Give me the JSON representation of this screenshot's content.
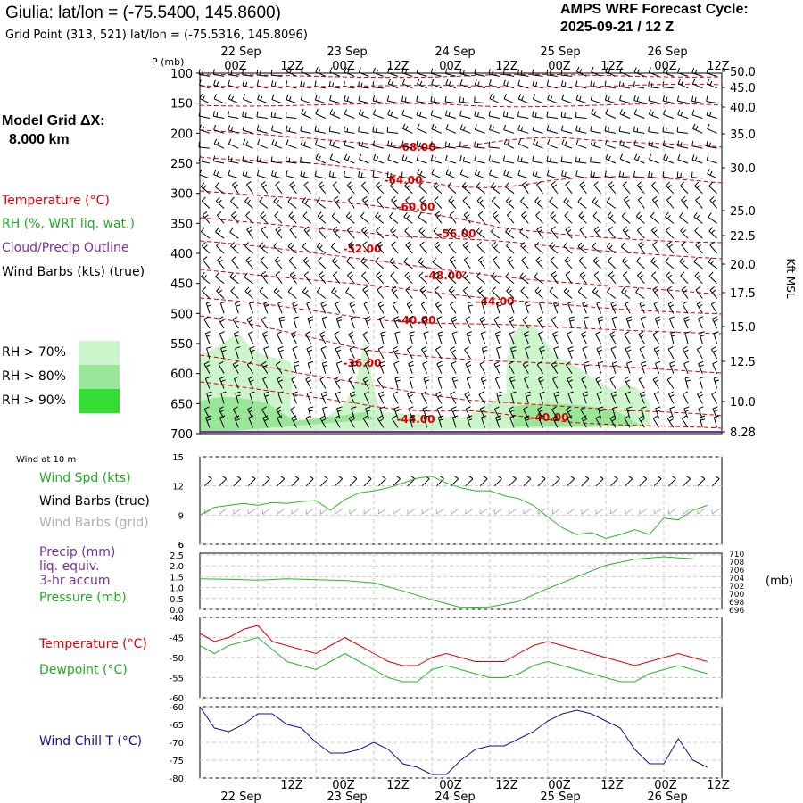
{
  "header": {
    "title": "Giulia:  lat/lon = (-75.5400, 145.8600)",
    "grid_point": "Grid Point (313, 521) lat/lon = (-75.5316, 145.8096)",
    "cycle_label": "AMPS WRF Forecast Cycle:",
    "cycle_value": "2025-09-21 / 12  Z"
  },
  "sidebar": {
    "model_grid_label": "Model Grid ΔX:",
    "model_grid_value": "8.000 km",
    "legend_temperature": "Temperature (°C)",
    "legend_rh": "RH (%, WRT liq. wat.)",
    "legend_cloud": "Cloud/Precip Outline",
    "legend_wind": "Wind Barbs (kts) (true)",
    "rh_levels": [
      "RH > 70%",
      "RH > 80%",
      "RH > 90%"
    ],
    "wind_at_10m": "Wind at 10 m",
    "wind_spd": "Wind Spd (kts)",
    "wind_barbs_true": "Wind Barbs (true)",
    "wind_barbs_grid": "Wind Barbs (grid)",
    "precip_1": "Precip (mm)",
    "precip_2": "liq. equiv.",
    "precip_3": "3-hr accum",
    "pressure": "Pressure (mb)",
    "temperature": "Temperature (°C)",
    "dewpoint": "Dewpoint (°C)",
    "wind_chill": "Wind Chill T (°C)"
  },
  "colors": {
    "temp": "#dd0000",
    "green": "#22bb22",
    "purple": "#7b2fa0",
    "blue": "#1010a0",
    "rh70": "#ccf5cc",
    "rh80": "#99e699",
    "rh90": "#33dd33",
    "grey_barb": "#b0b0b0"
  },
  "chart_data": [
    {
      "type": "contour",
      "name": "vertical-profile",
      "x_ticks": [
        "00Z",
        "12Z",
        "00Z",
        "12Z",
        "00Z",
        "12Z",
        "00Z",
        "12Z",
        "00Z",
        "12Z"
      ],
      "x_dates": [
        "22 Sep",
        "23 Sep",
        "24 Sep",
        "25 Sep",
        "26 Sep"
      ],
      "y_axis_label": "P (mb)",
      "y_ticks": [
        100,
        150,
        200,
        250,
        300,
        350,
        400,
        450,
        500,
        550,
        600,
        650,
        700
      ],
      "right_axis_label": "Kft MSL",
      "right_ticks": [
        "50.0",
        "45.0",
        "40.0",
        "35.0",
        "30.0",
        "25.0",
        "22.5",
        "20.0",
        "17.5",
        "15.0",
        "12.5",
        "10.0",
        "8.28"
      ],
      "temperature_labels": [
        "-68.00",
        "-64.00",
        "-60.00",
        "-56.00",
        "-52.00",
        "-48.00",
        "-44.00",
        "-40.00",
        "-36.00",
        "-44.00",
        "-40.00"
      ]
    },
    {
      "type": "line",
      "name": "wind-speed-10m",
      "y_ticks": [
        15,
        12,
        9,
        6
      ],
      "ylim": [
        6,
        15
      ],
      "x_hours": [
        0,
        3,
        6,
        9,
        12,
        15,
        18,
        21,
        24,
        27,
        30,
        33,
        36,
        39,
        42,
        45,
        48,
        51,
        54,
        57,
        60,
        63,
        66,
        69,
        72,
        75,
        78,
        81,
        84,
        87,
        90,
        93,
        96,
        99,
        102,
        105
      ],
      "values": [
        9.0,
        9.8,
        10.0,
        10.2,
        10.0,
        10.3,
        10.2,
        10.4,
        10.5,
        9.5,
        10.6,
        11.3,
        11.5,
        11.8,
        12.3,
        12.8,
        13.0,
        12.3,
        11.8,
        11.5,
        11.5,
        11.0,
        10.7,
        10.0,
        8.8,
        7.7,
        7.0,
        7.2,
        6.6,
        7.0,
        7.5,
        7.0,
        8.7,
        8.5,
        9.5,
        10.0
      ]
    },
    {
      "type": "line",
      "name": "precip-pressure",
      "left_ticks": [
        "2.5",
        "2.0",
        "1.5",
        "1.0",
        "0.5",
        "0.0"
      ],
      "right_ticks": [
        "710",
        "708",
        "706",
        "704",
        "702",
        "700",
        "698",
        "696"
      ],
      "right_label": "(mb)",
      "ylim_pressure": [
        696,
        710
      ],
      "x_hours": [
        0,
        6,
        12,
        18,
        24,
        30,
        36,
        42,
        48,
        54,
        60,
        66,
        72,
        78,
        84,
        90,
        96,
        102
      ],
      "pressure": [
        703.6,
        703.5,
        703.3,
        703.6,
        703.4,
        703.2,
        702.6,
        700.6,
        698.4,
        696.5,
        696.6,
        698.0,
        701.2,
        704.1,
        707.0,
        708.5,
        709.1,
        708.6
      ]
    },
    {
      "type": "line",
      "name": "temperature-dewpoint",
      "y_ticks": [
        -40,
        -45,
        -50,
        -55,
        -60
      ],
      "ylim": [
        -60,
        -40
      ],
      "x_hours": [
        0,
        3,
        6,
        9,
        12,
        15,
        18,
        21,
        24,
        27,
        30,
        33,
        36,
        39,
        42,
        45,
        48,
        51,
        54,
        57,
        60,
        63,
        66,
        69,
        72,
        75,
        78,
        81,
        84,
        87,
        90,
        93,
        96,
        99,
        102,
        105
      ],
      "series": [
        {
          "name": "Temperature",
          "values": [
            -44,
            -46,
            -45,
            -43,
            -42,
            -46,
            -47,
            -48,
            -49,
            -47,
            -45,
            -47,
            -49,
            -51,
            -52,
            -52,
            -50,
            -49,
            -50,
            -51,
            -51,
            -51,
            -49,
            -47,
            -46,
            -47,
            -48,
            -49,
            -50,
            -51,
            -52,
            -51,
            -50,
            -49,
            -50,
            -51
          ]
        },
        {
          "name": "Dewpoint",
          "values": [
            -47,
            -49,
            -47,
            -46,
            -45,
            -48,
            -51,
            -52,
            -53,
            -51,
            -49,
            -51,
            -53,
            -55,
            -56,
            -56,
            -53,
            -52,
            -53,
            -54,
            -55,
            -55,
            -54,
            -52,
            -51,
            -52,
            -53,
            -54,
            -55,
            -56,
            -56,
            -54,
            -53,
            -52,
            -53,
            -54
          ]
        }
      ]
    },
    {
      "type": "line",
      "name": "wind-chill",
      "y_ticks": [
        -60,
        -65,
        -70,
        -75,
        -80
      ],
      "ylim": [
        -80,
        -60
      ],
      "x_hours": [
        0,
        3,
        6,
        9,
        12,
        15,
        18,
        21,
        24,
        27,
        30,
        33,
        36,
        39,
        42,
        45,
        48,
        51,
        54,
        57,
        60,
        63,
        66,
        69,
        72,
        75,
        78,
        81,
        84,
        87,
        90,
        93,
        96,
        99,
        102,
        105
      ],
      "values": [
        -60,
        -66,
        -67,
        -65,
        -62,
        -62,
        -65,
        -66,
        -70,
        -73,
        -73,
        -72,
        -70,
        -72,
        -76,
        -77,
        -79,
        -79,
        -75,
        -72,
        -71,
        -71,
        -69,
        -67,
        -64,
        -62,
        -61,
        -62,
        -64,
        -66,
        -72,
        -76,
        -76,
        -69,
        -75,
        -77
      ]
    }
  ]
}
